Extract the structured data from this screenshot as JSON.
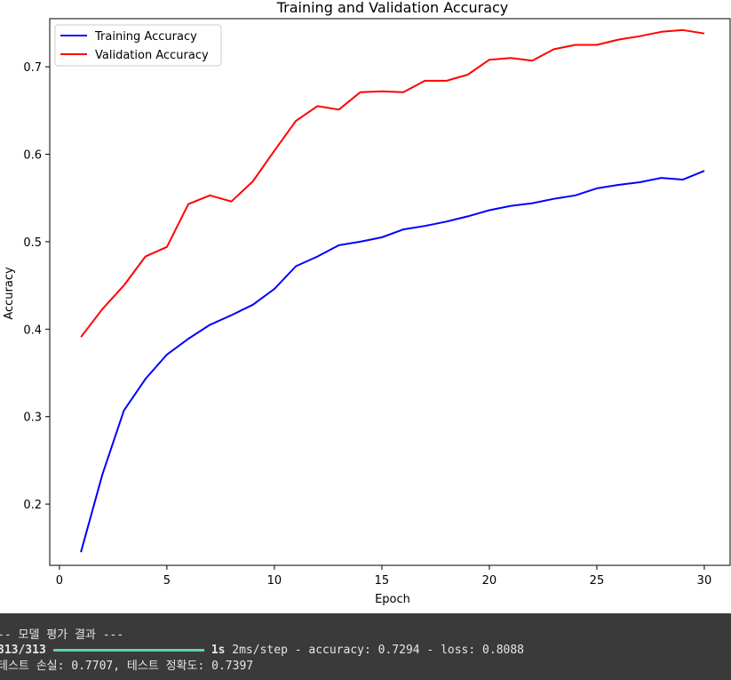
{
  "chart_data": {
    "type": "line",
    "title": "Training and Validation Accuracy",
    "xlabel": "Epoch",
    "ylabel": "Accuracy",
    "xlim": [
      0,
      30
    ],
    "ylim": [
      0.13,
      0.755
    ],
    "xticks": [
      0,
      5,
      10,
      15,
      20,
      25,
      30
    ],
    "yticks": [
      0.2,
      0.3,
      0.4,
      0.5,
      0.6,
      0.7
    ],
    "grid": false,
    "legend": "top-left",
    "x": [
      1,
      2,
      3,
      4,
      5,
      6,
      7,
      8,
      9,
      10,
      11,
      12,
      13,
      14,
      15,
      16,
      17,
      18,
      19,
      20,
      21,
      22,
      23,
      24,
      25,
      26,
      27,
      28,
      29,
      30
    ],
    "series": [
      {
        "name": "Training Accuracy",
        "color": "#0000ff",
        "values": [
          0.145,
          0.234,
          0.307,
          0.343,
          0.371,
          0.389,
          0.405,
          0.416,
          0.428,
          0.446,
          0.472,
          0.483,
          0.496,
          0.5,
          0.505,
          0.514,
          0.518,
          0.523,
          0.529,
          0.536,
          0.541,
          0.544,
          0.549,
          0.553,
          0.561,
          0.565,
          0.568,
          0.573,
          0.571,
          0.581
        ]
      },
      {
        "name": "Validation Accuracy",
        "color": "#ff0000",
        "values": [
          0.391,
          0.423,
          0.45,
          0.483,
          0.494,
          0.543,
          0.553,
          0.546,
          0.569,
          0.604,
          0.638,
          0.655,
          0.651,
          0.671,
          0.672,
          0.671,
          0.684,
          0.684,
          0.691,
          0.708,
          0.71,
          0.707,
          0.72,
          0.725,
          0.725,
          0.731,
          0.735,
          0.74,
          0.742,
          0.738
        ]
      }
    ]
  },
  "console": {
    "line1": "-- 모델 평가 결과 ---",
    "line2_steps": "313/313",
    "line2_time": "1s",
    "line2_rest": "2ms/step - accuracy: 0.7294 - loss: 0.8088",
    "line3": "테스트 손실: 0.7707, 테스트 정확도: 0.7397"
  }
}
